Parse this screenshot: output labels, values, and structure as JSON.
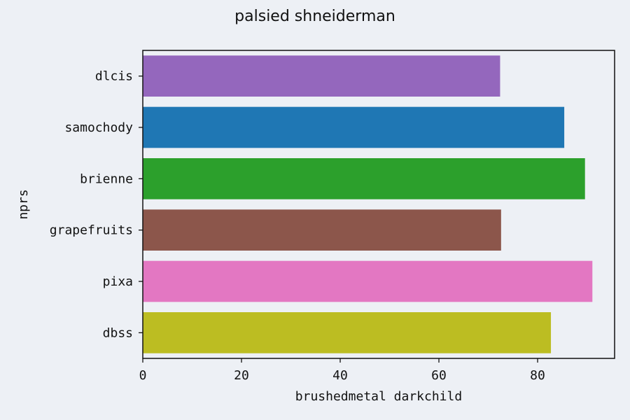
{
  "chart_data": {
    "type": "bar",
    "orientation": "horizontal",
    "title": "palsied shneiderman",
    "xlabel": "brushedmetal darkchild",
    "ylabel": "nprs",
    "categories": [
      "dlcis",
      "samochody",
      "brienne",
      "grapefruits",
      "pixa",
      "dbss"
    ],
    "values": [
      72.4,
      85.4,
      89.6,
      72.6,
      91.1,
      82.7
    ],
    "colors": [
      "#9467bd",
      "#1f77b4",
      "#2ca02c",
      "#8c564b",
      "#e377c2",
      "#bcbd22"
    ],
    "xlim": [
      0,
      95.6
    ],
    "xticks": [
      0,
      20,
      40,
      60,
      80
    ],
    "grid": false,
    "background": "#edf0f5"
  }
}
